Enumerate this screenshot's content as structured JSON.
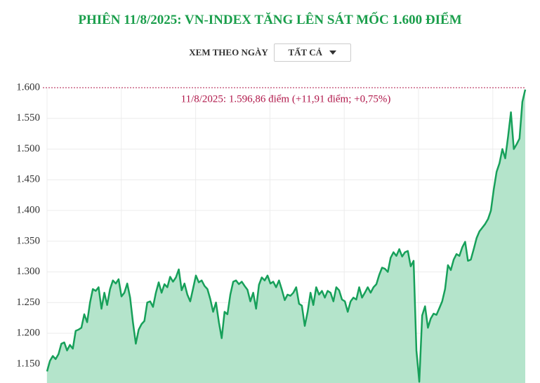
{
  "chart_data": {
    "type": "area",
    "title": "PHIÊN 11/8/2025: VN-INDEX TĂNG LÊN SÁT MỐC 1.600 ĐIỂM",
    "filter_label": "XEM THEO NGÀY",
    "filter_value": "TẤT CẢ",
    "annotation": "11/8/2025: 1.596,86 điểm (+11,91 điểm; +0,75%)",
    "color": "#17a05a",
    "fill_color": "#b4e4cb",
    "grid": true,
    "ylim": [
      1119,
      1600
    ],
    "yticks": [
      {
        "value": 1150,
        "label": "1.150"
      },
      {
        "value": 1200,
        "label": "1.200"
      },
      {
        "value": 1250,
        "label": "1.250"
      },
      {
        "value": 1300,
        "label": "1.300"
      },
      {
        "value": 1350,
        "label": "1.350"
      },
      {
        "value": 1400,
        "label": "1.400"
      },
      {
        "value": 1450,
        "label": "1.450"
      },
      {
        "value": 1500,
        "label": "1.500"
      },
      {
        "value": 1550,
        "label": "1.550"
      },
      {
        "value": 1600,
        "label": "1.600"
      }
    ],
    "values": [
      1138,
      1155,
      1163,
      1158,
      1166,
      1183,
      1185,
      1172,
      1181,
      1175,
      1204,
      1206,
      1209,
      1231,
      1218,
      1250,
      1272,
      1269,
      1275,
      1240,
      1266,
      1246,
      1272,
      1286,
      1281,
      1288,
      1260,
      1266,
      1281,
      1258,
      1218,
      1183,
      1206,
      1215,
      1220,
      1250,
      1252,
      1243,
      1266,
      1283,
      1266,
      1280,
      1275,
      1292,
      1284,
      1291,
      1304,
      1270,
      1281,
      1263,
      1252,
      1273,
      1294,
      1283,
      1286,
      1277,
      1272,
      1256,
      1235,
      1250,
      1218,
      1192,
      1235,
      1231,
      1263,
      1284,
      1286,
      1280,
      1284,
      1277,
      1271,
      1252,
      1266,
      1240,
      1279,
      1291,
      1286,
      1294,
      1281,
      1284,
      1275,
      1286,
      1271,
      1254,
      1263,
      1261,
      1266,
      1275,
      1248,
      1245,
      1212,
      1235,
      1266,
      1246,
      1275,
      1263,
      1269,
      1258,
      1269,
      1266,
      1252,
      1275,
      1270,
      1255,
      1252,
      1235,
      1252,
      1258,
      1255,
      1275,
      1258,
      1266,
      1275,
      1266,
      1275,
      1280,
      1295,
      1307,
      1305,
      1300,
      1323,
      1332,
      1326,
      1337,
      1325,
      1332,
      1334,
      1309,
      1318,
      1172,
      1121,
      1229,
      1244,
      1209,
      1224,
      1232,
      1230,
      1241,
      1252,
      1272,
      1311,
      1303,
      1320,
      1329,
      1326,
      1340,
      1349,
      1318,
      1320,
      1337,
      1355,
      1366,
      1372,
      1378,
      1386,
      1400,
      1434,
      1463,
      1477,
      1500,
      1485,
      1520,
      1560,
      1500,
      1508,
      1517,
      1577,
      1596.86
    ]
  }
}
